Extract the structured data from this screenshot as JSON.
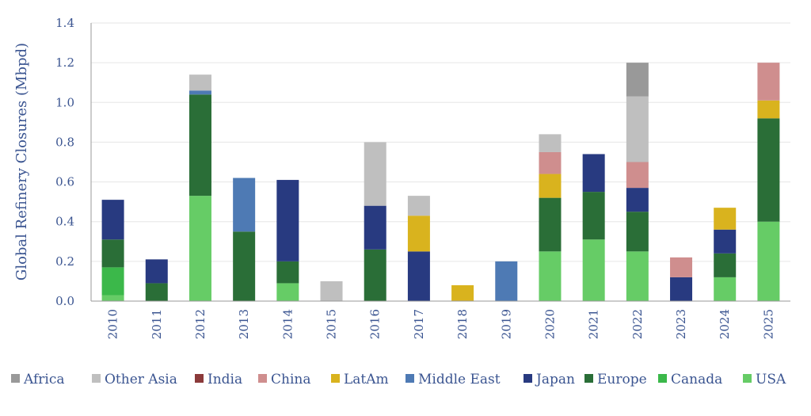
{
  "chart_data": {
    "type": "bar",
    "stacked": true,
    "ylabel": "Global Refinery Closures (Mbpd)",
    "ylim": [
      0,
      1.4
    ],
    "yticks": [
      "0.0",
      "0.2",
      "0.4",
      "0.6",
      "0.8",
      "1.0",
      "1.2",
      "1.4"
    ],
    "grid": true,
    "legend_position": "bottom",
    "categories": [
      "2010",
      "2011",
      "2012",
      "2013",
      "2014",
      "2015",
      "2016",
      "2017",
      "2018",
      "2019",
      "2020",
      "2021",
      "2022",
      "2023",
      "2024",
      "2025"
    ],
    "series": [
      {
        "name": "USA",
        "color": "#66cc66",
        "values": [
          0.03,
          0.0,
          0.53,
          0.0,
          0.09,
          0.0,
          0.0,
          0.0,
          0.0,
          0.0,
          0.25,
          0.31,
          0.25,
          0.0,
          0.12,
          0.4
        ]
      },
      {
        "name": "Canada",
        "color": "#3bb84a",
        "values": [
          0.14,
          0.0,
          0.0,
          0.0,
          0.0,
          0.0,
          0.0,
          0.0,
          0.0,
          0.0,
          0.0,
          0.0,
          0.0,
          0.0,
          0.0,
          0.0
        ]
      },
      {
        "name": "Europe",
        "color": "#2a6e37",
        "values": [
          0.14,
          0.09,
          0.51,
          0.35,
          0.11,
          0.0,
          0.26,
          0.0,
          0.0,
          0.0,
          0.27,
          0.24,
          0.2,
          0.0,
          0.12,
          0.52
        ]
      },
      {
        "name": "Japan",
        "color": "#283a80",
        "values": [
          0.2,
          0.12,
          0.0,
          0.0,
          0.41,
          0.0,
          0.22,
          0.25,
          0.0,
          0.0,
          0.0,
          0.19,
          0.12,
          0.12,
          0.12,
          0.0
        ]
      },
      {
        "name": "Middle East",
        "color": "#4e7ab4",
        "values": [
          0.0,
          0.0,
          0.02,
          0.27,
          0.0,
          0.0,
          0.0,
          0.0,
          0.0,
          0.2,
          0.0,
          0.0,
          0.0,
          0.0,
          0.0,
          0.0
        ]
      },
      {
        "name": "LatAm",
        "color": "#d9b31e",
        "values": [
          0.0,
          0.0,
          0.0,
          0.0,
          0.0,
          0.0,
          0.0,
          0.18,
          0.08,
          0.0,
          0.12,
          0.0,
          0.0,
          0.0,
          0.11,
          0.09
        ]
      },
      {
        "name": "China",
        "color": "#cf8e8e",
        "values": [
          0.0,
          0.0,
          0.0,
          0.0,
          0.0,
          0.0,
          0.0,
          0.0,
          0.0,
          0.0,
          0.11,
          0.0,
          0.13,
          0.1,
          0.0,
          0.19
        ]
      },
      {
        "name": "India",
        "color": "#8b3a3a",
        "values": [
          0.0,
          0.0,
          0.0,
          0.0,
          0.0,
          0.0,
          0.0,
          0.0,
          0.0,
          0.0,
          0.0,
          0.0,
          0.0,
          0.0,
          0.0,
          0.0
        ]
      },
      {
        "name": "Other Asia",
        "color": "#bfbfbf",
        "values": [
          0.0,
          0.0,
          0.08,
          0.0,
          0.0,
          0.1,
          0.32,
          0.1,
          0.0,
          0.0,
          0.09,
          0.0,
          0.33,
          0.0,
          0.0,
          0.0
        ]
      },
      {
        "name": "Africa",
        "color": "#999999",
        "values": [
          0.0,
          0.0,
          0.0,
          0.0,
          0.0,
          0.0,
          0.0,
          0.0,
          0.0,
          0.0,
          0.0,
          0.0,
          0.17,
          0.0,
          0.0,
          0.0
        ]
      }
    ],
    "legend_order": [
      "Africa",
      "Other Asia",
      "India",
      "China",
      "LatAm",
      "Middle East",
      "Japan",
      "Europe",
      "Canada",
      "USA"
    ]
  },
  "colors": {
    "text": "#3b5591",
    "gridline": "#e6e6e6",
    "axis": "#9a9a9a"
  }
}
